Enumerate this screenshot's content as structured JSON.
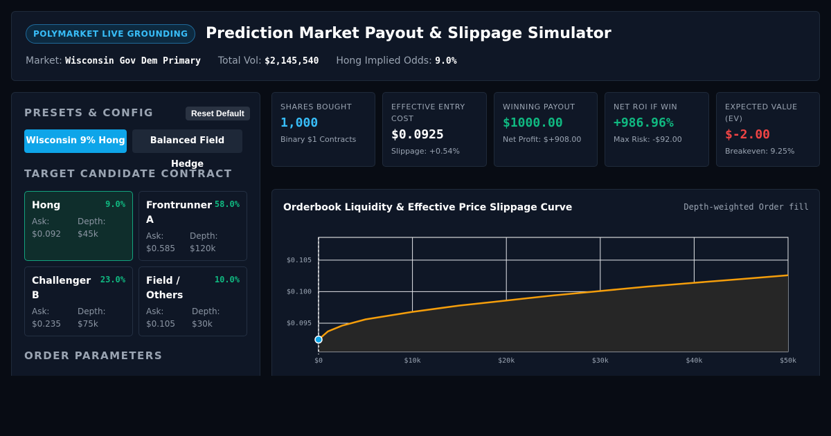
{
  "header": {
    "badge": "POLYMARKET LIVE GROUNDING",
    "title": "Prediction Market Payout & Slippage Simulator",
    "market_label": "Market:",
    "market_value": "Wisconsin Gov Dem Primary",
    "volume_label": "Total Vol:",
    "volume_value": "$2,145,540",
    "odds_label": "Hong Implied Odds:",
    "odds_value": "9.0%"
  },
  "config": {
    "title": "PRESETS & CONFIG",
    "reset_label": "Reset Default",
    "presets": [
      {
        "label": "Wisconsin 9% Hong",
        "active": true
      },
      {
        "label": "Balanced Field Hedge",
        "active": false
      }
    ],
    "target_title": "TARGET CANDIDATE CONTRACT",
    "candidates": [
      {
        "name": "Hong",
        "pct": "9.0%",
        "ask_label": "Ask:",
        "ask": "$0.092",
        "depth_label": "Depth:",
        "depth": "$45k",
        "selected": true
      },
      {
        "name": "Frontrunner A",
        "pct": "58.0%",
        "ask_label": "Ask:",
        "ask": "$0.585",
        "depth_label": "Depth:",
        "depth": "$120k",
        "selected": false
      },
      {
        "name": "Challenger B",
        "pct": "23.0%",
        "ask_label": "Ask:",
        "ask": "$0.235",
        "depth_label": "Depth:",
        "depth": "$75k",
        "selected": false
      },
      {
        "name": "Field / Others",
        "pct": "10.0%",
        "ask_label": "Ask:",
        "ask": "$0.105",
        "depth_label": "Depth:",
        "depth": "$30k",
        "selected": false
      }
    ],
    "order_title": "ORDER PARAMETERS"
  },
  "stats": [
    {
      "label": "SHARES BOUGHT",
      "value": "1,000",
      "sub": "Binary $1 Contracts",
      "color": "#38bdf8"
    },
    {
      "label": "EFFECTIVE ENTRY COST",
      "value": "$0.0925",
      "sub": "Slippage: +0.54%",
      "color": "#ffffff"
    },
    {
      "label": "WINNING PAYOUT",
      "value": "$1000.00",
      "sub": "Net Profit: $+908.00",
      "color": "#10b981"
    },
    {
      "label": "NET ROI IF WIN",
      "value": "+986.96%",
      "sub": "Max Risk: -$92.00",
      "color": "#10b981"
    },
    {
      "label": "EXPECTED VALUE (EV)",
      "value": "$-2.00",
      "sub": "Breakeven: 9.25%",
      "color": "#ef4444"
    }
  ],
  "chart": {
    "title": "Orderbook Liquidity & Effective Price Slippage Curve",
    "subtitle": "Depth-weighted Order fill"
  },
  "chart_data": {
    "type": "area",
    "title": "Orderbook Liquidity & Effective Price Slippage Curve",
    "xlabel": "",
    "ylabel": "",
    "x": [
      0,
      1000,
      2500,
      5000,
      10000,
      15000,
      20000,
      25000,
      30000,
      35000,
      40000,
      45000,
      50000
    ],
    "y": [
      0.0924,
      0.0937,
      0.0946,
      0.0956,
      0.0968,
      0.0978,
      0.0986,
      0.0994,
      0.1001,
      0.1008,
      0.1014,
      0.102,
      0.1026
    ],
    "xlim": [
      0,
      50000
    ],
    "ylim": [
      0.0905,
      0.1086
    ],
    "x_ticks": [
      0,
      10000,
      20000,
      30000,
      40000,
      50000
    ],
    "x_tick_labels": [
      "$0",
      "$10k",
      "$20k",
      "$30k",
      "$40k",
      "$50k"
    ],
    "y_ticks": [
      0.095,
      0.1,
      0.105
    ],
    "y_tick_labels": [
      "$0.095",
      "$0.100",
      "$0.105"
    ],
    "marker": {
      "x": 0,
      "y": 0.0924
    },
    "grid": true,
    "line_color": "#f59e0b"
  }
}
